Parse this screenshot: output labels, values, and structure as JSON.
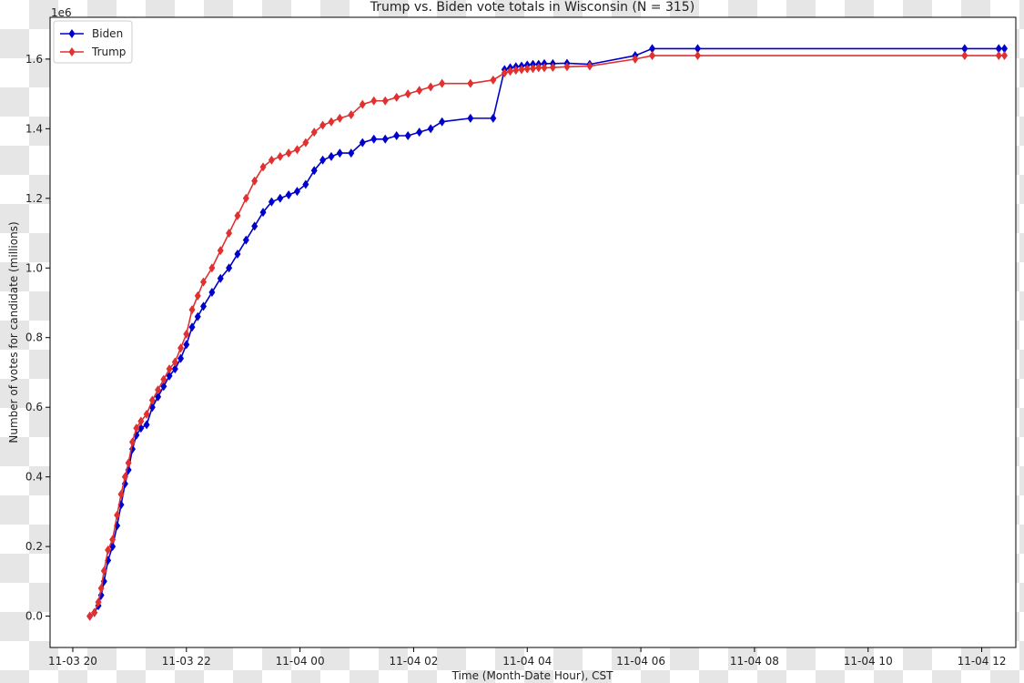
{
  "chart_data": {
    "type": "line",
    "title": "Trump vs. Biden vote totals in Wisconsin (N = 315)",
    "xlabel": "Time (Month-Date Hour), CST",
    "ylabel": "Number of votes for candidate (millions)",
    "y_offset_label": "1e6",
    "x_unit": "hours",
    "xlim": [
      19.6,
      36.6
    ],
    "ylim": [
      -0.09,
      1.72
    ],
    "x_ticks": [
      {
        "value": 20,
        "label": "11-03 20"
      },
      {
        "value": 22,
        "label": "11-03 22"
      },
      {
        "value": 24,
        "label": "11-04 00"
      },
      {
        "value": 26,
        "label": "11-04 02"
      },
      {
        "value": 28,
        "label": "11-04 04"
      },
      {
        "value": 30,
        "label": "11-04 06"
      },
      {
        "value": 32,
        "label": "11-04 08"
      },
      {
        "value": 34,
        "label": "11-04 10"
      },
      {
        "value": 36,
        "label": "11-04 12"
      }
    ],
    "y_ticks": [
      {
        "value": 0.0,
        "label": "0.0"
      },
      {
        "value": 0.2,
        "label": "0.2"
      },
      {
        "value": 0.4,
        "label": "0.4"
      },
      {
        "value": 0.6,
        "label": "0.6"
      },
      {
        "value": 0.8,
        "label": "0.8"
      },
      {
        "value": 1.0,
        "label": "1.0"
      },
      {
        "value": 1.2,
        "label": "1.2"
      },
      {
        "value": 1.4,
        "label": "1.4"
      },
      {
        "value": 1.6,
        "label": "1.6"
      }
    ],
    "grid": false,
    "legend_position": "top-left",
    "series": [
      {
        "name": "Biden",
        "color": "#0000cc",
        "marker": "diamond",
        "x": [
          20.3,
          20.38,
          20.45,
          20.5,
          20.55,
          20.62,
          20.7,
          20.78,
          20.85,
          20.92,
          20.98,
          21.05,
          21.12,
          21.2,
          21.3,
          21.4,
          21.5,
          21.6,
          21.7,
          21.8,
          21.9,
          22.0,
          22.1,
          22.2,
          22.3,
          22.45,
          22.6,
          22.75,
          22.9,
          23.05,
          23.2,
          23.35,
          23.5,
          23.65,
          23.8,
          23.95,
          24.1,
          24.25,
          24.4,
          24.55,
          24.7,
          24.9,
          25.1,
          25.3,
          25.5,
          25.7,
          25.9,
          26.1,
          26.3,
          26.5,
          27.0,
          27.4,
          27.6,
          27.7,
          27.8,
          27.9,
          28.0,
          28.1,
          28.2,
          28.3,
          28.45,
          28.7,
          29.1,
          29.9,
          30.2,
          31.0,
          35.7,
          36.3,
          36.4
        ],
        "y": [
          0.0,
          0.01,
          0.03,
          0.06,
          0.1,
          0.16,
          0.2,
          0.26,
          0.32,
          0.38,
          0.42,
          0.48,
          0.52,
          0.54,
          0.55,
          0.6,
          0.63,
          0.66,
          0.69,
          0.71,
          0.74,
          0.78,
          0.83,
          0.86,
          0.89,
          0.93,
          0.97,
          1.0,
          1.04,
          1.08,
          1.12,
          1.16,
          1.19,
          1.2,
          1.21,
          1.22,
          1.24,
          1.28,
          1.31,
          1.32,
          1.33,
          1.33,
          1.36,
          1.37,
          1.37,
          1.38,
          1.38,
          1.39,
          1.4,
          1.42,
          1.43,
          1.43,
          1.57,
          1.575,
          1.578,
          1.58,
          1.583,
          1.585,
          1.585,
          1.587,
          1.587,
          1.588,
          1.585,
          1.61,
          1.63,
          1.63,
          1.63,
          1.63,
          1.63
        ]
      },
      {
        "name": "Trump",
        "color": "#e03030",
        "marker": "diamond",
        "x": [
          20.3,
          20.38,
          20.45,
          20.5,
          20.55,
          20.62,
          20.7,
          20.78,
          20.85,
          20.92,
          20.98,
          21.05,
          21.12,
          21.2,
          21.3,
          21.4,
          21.5,
          21.6,
          21.7,
          21.8,
          21.9,
          22.0,
          22.1,
          22.2,
          22.3,
          22.45,
          22.6,
          22.75,
          22.9,
          23.05,
          23.2,
          23.35,
          23.5,
          23.65,
          23.8,
          23.95,
          24.1,
          24.25,
          24.4,
          24.55,
          24.7,
          24.9,
          25.1,
          25.3,
          25.5,
          25.7,
          25.9,
          26.1,
          26.3,
          26.5,
          27.0,
          27.4,
          27.6,
          27.7,
          27.8,
          27.9,
          28.0,
          28.1,
          28.2,
          28.3,
          28.45,
          28.7,
          29.1,
          29.9,
          30.2,
          31.0,
          35.7,
          36.3,
          36.4
        ],
        "y": [
          0.0,
          0.01,
          0.04,
          0.08,
          0.13,
          0.19,
          0.22,
          0.29,
          0.35,
          0.4,
          0.44,
          0.5,
          0.54,
          0.56,
          0.58,
          0.62,
          0.65,
          0.68,
          0.71,
          0.73,
          0.77,
          0.81,
          0.88,
          0.92,
          0.96,
          1.0,
          1.05,
          1.1,
          1.15,
          1.2,
          1.25,
          1.29,
          1.31,
          1.32,
          1.33,
          1.34,
          1.36,
          1.39,
          1.41,
          1.42,
          1.43,
          1.44,
          1.47,
          1.48,
          1.48,
          1.49,
          1.5,
          1.51,
          1.52,
          1.53,
          1.53,
          1.54,
          1.56,
          1.565,
          1.568,
          1.57,
          1.572,
          1.573,
          1.575,
          1.575,
          1.576,
          1.578,
          1.58,
          1.6,
          1.61,
          1.61,
          1.61,
          1.61,
          1.61
        ]
      }
    ]
  }
}
